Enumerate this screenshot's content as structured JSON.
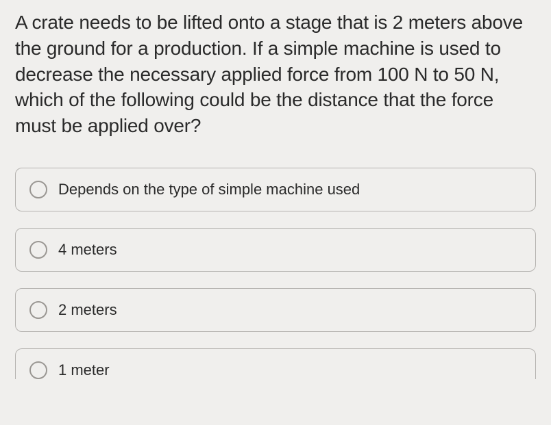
{
  "question": {
    "text": "A crate needs to be lifted onto a stage that is 2 meters above the ground for a production. If a simple machine is used to decrease the necessary applied force from 100 N to 50 N, which of the following could be the distance that the force must be applied over?",
    "font_size": 28,
    "color": "#2a2a2a"
  },
  "options": [
    {
      "label": "Depends on the type of simple machine used",
      "selected": false
    },
    {
      "label": "4 meters",
      "selected": false
    },
    {
      "label": "2 meters",
      "selected": false
    },
    {
      "label": "1 meter",
      "selected": false
    }
  ],
  "styling": {
    "background_color": "#f0efed",
    "option_border_color": "#b5b3b0",
    "option_border_radius": 10,
    "radio_border_color": "#9a9793",
    "option_font_size": 22
  }
}
